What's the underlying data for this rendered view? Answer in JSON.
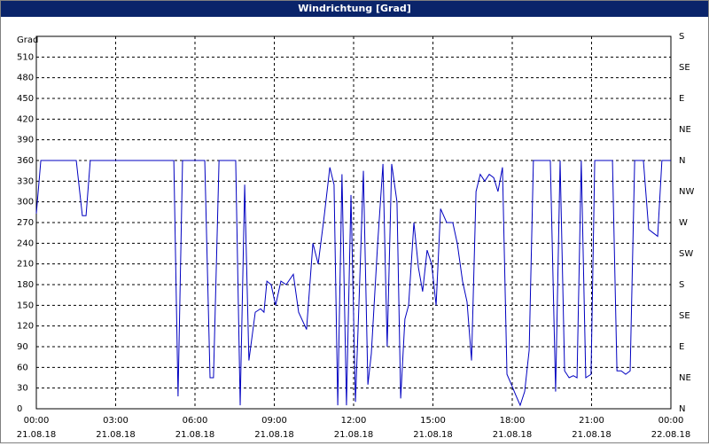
{
  "chart_data": {
    "type": "line",
    "title": "Windrichtung [Grad]",
    "ylabel": "Grad",
    "x": [
      0,
      0.17,
      1.51,
      1.74,
      1.88,
      2.04,
      5.2,
      5.36,
      5.53,
      6.37,
      6.57,
      6.7,
      6.91,
      7.54,
      7.71,
      7.88,
      8.04,
      8.28,
      8.48,
      8.61,
      8.72,
      8.88,
      9.05,
      9.25,
      9.45,
      9.72,
      9.92,
      10.22,
      10.46,
      10.66,
      10.89,
      11.1,
      11.26,
      11.4,
      11.56,
      11.73,
      11.9,
      12.07,
      12.2,
      12.37,
      12.54,
      12.67,
      12.91,
      13.11,
      13.27,
      13.44,
      13.64,
      13.78,
      13.94,
      14.08,
      14.28,
      14.45,
      14.61,
      14.78,
      14.95,
      15.12,
      15.29,
      15.52,
      15.75,
      15.92,
      16.12,
      16.29,
      16.46,
      16.63,
      16.79,
      16.96,
      17.13,
      17.3,
      17.46,
      17.63,
      17.8,
      17.97,
      18.13,
      18.3,
      18.47,
      18.64,
      18.8,
      19.44,
      19.64,
      19.81,
      19.98,
      20.15,
      20.31,
      20.45,
      20.61,
      20.78,
      20.98,
      21.12,
      21.79,
      21.96,
      22.12,
      22.29,
      22.46,
      22.63,
      22.96,
      23.16,
      23.33,
      23.5,
      23.66,
      24
    ],
    "series": [
      {
        "name": "Windrichtung",
        "color": "#0000c0",
        "values": [
          283,
          360,
          360,
          280,
          280,
          360,
          360,
          18,
          360,
          360,
          45,
          45,
          360,
          360,
          5,
          325,
          70,
          140,
          145,
          140,
          185,
          180,
          150,
          185,
          180,
          195,
          140,
          115,
          240,
          210,
          280,
          350,
          325,
          5,
          340,
          5,
          310,
          10,
          150,
          345,
          35,
          80,
          240,
          355,
          90,
          355,
          300,
          15,
          130,
          150,
          270,
          205,
          170,
          230,
          210,
          150,
          290,
          270,
          270,
          240,
          185,
          155,
          70,
          315,
          340,
          330,
          340,
          335,
          315,
          350,
          50,
          35,
          20,
          5,
          25,
          85,
          360,
          360,
          25,
          360,
          55,
          45,
          48,
          45,
          360,
          45,
          50,
          360,
          360,
          55,
          55,
          50,
          55,
          360,
          360,
          260,
          255,
          250,
          360,
          360
        ]
      }
    ],
    "xlim": [
      0,
      24
    ],
    "xticks": [
      {
        "value": 0,
        "label": "00:00"
      },
      {
        "value": 3,
        "label": "03:00"
      },
      {
        "value": 6,
        "label": "06:00"
      },
      {
        "value": 9,
        "label": "09:00"
      },
      {
        "value": 12,
        "label": "12:00"
      },
      {
        "value": 15,
        "label": "15:00"
      },
      {
        "value": 18,
        "label": "18:00"
      },
      {
        "value": 21,
        "label": "21:00"
      },
      {
        "value": 24,
        "label": "00:00"
      }
    ],
    "xtick_dates": [
      "21.08.18",
      "21.08.18",
      "21.08.18",
      "21.08.18",
      "21.08.18",
      "21.08.18",
      "21.08.18",
      "21.08.18",
      "22.08.18"
    ],
    "ylim": [
      0,
      540
    ],
    "yticks": [
      0,
      30,
      60,
      90,
      120,
      150,
      180,
      210,
      240,
      270,
      300,
      330,
      360,
      390,
      420,
      450,
      480,
      510
    ],
    "y2lim": [
      0,
      540
    ],
    "y2ticks": [
      {
        "value": 0,
        "label": "N"
      },
      {
        "value": 45,
        "label": "NE"
      },
      {
        "value": 90,
        "label": "E"
      },
      {
        "value": 135,
        "label": "SE"
      },
      {
        "value": 180,
        "label": "S"
      },
      {
        "value": 225,
        "label": "SW"
      },
      {
        "value": 270,
        "label": "W"
      },
      {
        "value": 315,
        "label": "NW"
      },
      {
        "value": 360,
        "label": "N"
      },
      {
        "value": 405,
        "label": "NE"
      },
      {
        "value": 450,
        "label": "E"
      },
      {
        "value": 495,
        "label": "SE"
      },
      {
        "value": 540,
        "label": "S"
      }
    ],
    "grid": true
  }
}
